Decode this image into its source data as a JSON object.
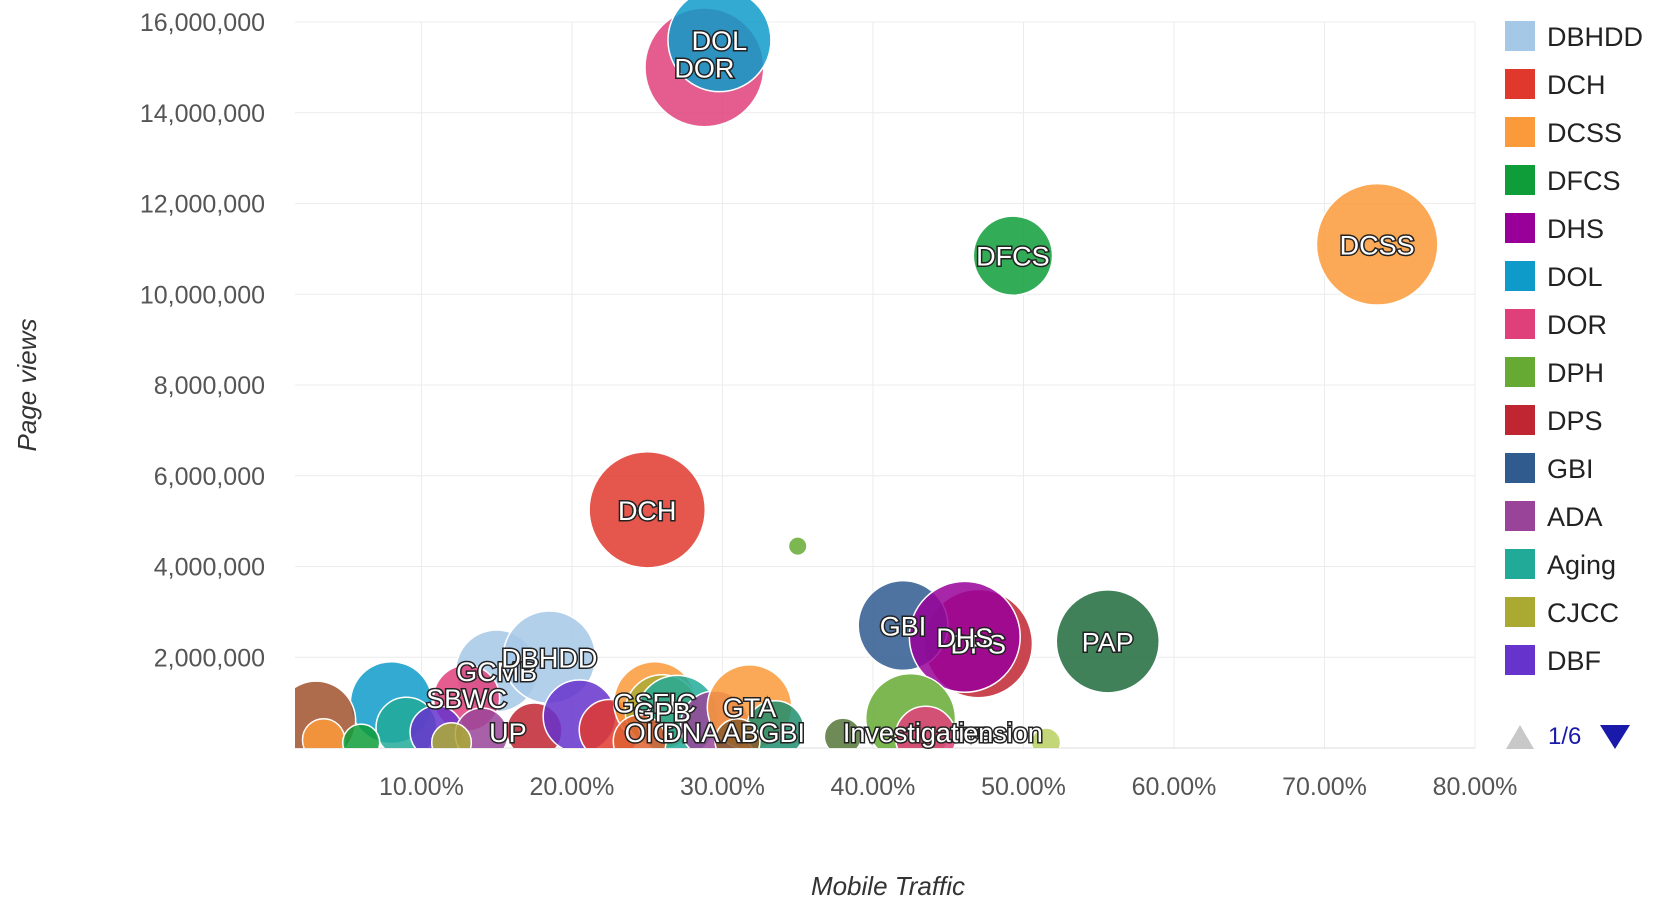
{
  "chart_data": {
    "type": "bubble",
    "xlabel": "Mobile Traffic",
    "ylabel": "Page views",
    "xlim": [
      0.016,
      0.8
    ],
    "ylim": [
      0,
      16000000
    ],
    "x_ticks": [
      "10.00%",
      "20.00%",
      "30.00%",
      "40.00%",
      "50.00%",
      "60.00%",
      "70.00%",
      "80.00%"
    ],
    "x_tick_values": [
      0.1,
      0.2,
      0.3,
      0.4,
      0.5,
      0.6,
      0.7,
      0.8
    ],
    "y_ticks": [
      "16,000,000",
      "14,000,000",
      "12,000,000",
      "10,000,000",
      "8,000,000",
      "6,000,000",
      "4,000,000",
      "2,000,000"
    ],
    "y_tick_values": [
      16000000,
      14000000,
      12000000,
      10000000,
      8000000,
      6000000,
      4000000,
      2000000
    ],
    "grid": true,
    "legend_position": "right",
    "legend": [
      {
        "name": "DBHDD",
        "color": "#a6c8e7"
      },
      {
        "name": "DCH",
        "color": "#e0382d"
      },
      {
        "name": "DCSS",
        "color": "#fb9a3a"
      },
      {
        "name": "DFCS",
        "color": "#0f9d3a"
      },
      {
        "name": "DHS",
        "color": "#990099"
      },
      {
        "name": "DOL",
        "color": "#0e9bc9"
      },
      {
        "name": "DOR",
        "color": "#e0407a"
      },
      {
        "name": "DPH",
        "color": "#66aa33"
      },
      {
        "name": "DPS",
        "color": "#c02631"
      },
      {
        "name": "GBI",
        "color": "#2f5b8f"
      },
      {
        "name": "ADA",
        "color": "#994499"
      },
      {
        "name": "Aging",
        "color": "#22aa99"
      },
      {
        "name": "CJCC",
        "color": "#aaaa33"
      },
      {
        "name": "DBF",
        "color": "#6633cc"
      }
    ],
    "pager": "1/6",
    "bubbles": [
      {
        "label": "DOR",
        "x": 0.288,
        "y": 15000000,
        "size": 90,
        "color": "#e0407a"
      },
      {
        "label": "DOL",
        "x": 0.298,
        "y": 15600000,
        "size": 78,
        "color": "#0e9bc9"
      },
      {
        "label": "DFCS",
        "x": 0.493,
        "y": 10850000,
        "size": 60,
        "color": "#0f9d3a"
      },
      {
        "label": "DCSS",
        "x": 0.735,
        "y": 11100000,
        "size": 92,
        "color": "#fb9a3a"
      },
      {
        "label": "DCH",
        "x": 0.25,
        "y": 5250000,
        "size": 88,
        "color": "#e0382d"
      },
      {
        "label": "",
        "x": 0.35,
        "y": 4450000,
        "size": 14,
        "color": "#66aa33"
      },
      {
        "label": "DPS",
        "x": 0.47,
        "y": 2300000,
        "size": 82,
        "color": "#c02631"
      },
      {
        "label": "GBI",
        "x": 0.42,
        "y": 2700000,
        "size": 68,
        "color": "#2f5b8f"
      },
      {
        "label": "DHS",
        "x": 0.461,
        "y": 2450000,
        "size": 84,
        "color": "#990099"
      },
      {
        "label": "PAP",
        "x": 0.556,
        "y": 2350000,
        "size": 78,
        "color": "#1e6b3c"
      },
      {
        "label": "GCMB",
        "x": 0.15,
        "y": 1700000,
        "size": 62,
        "color": "#a6c8e7"
      },
      {
        "label": "DBHDD",
        "x": 0.185,
        "y": 2000000,
        "size": 70,
        "color": "#a6c8e7"
      },
      {
        "label": "SBWC",
        "x": 0.13,
        "y": 1100000,
        "size": 50,
        "color": "#e0407a"
      },
      {
        "label": "",
        "x": 0.08,
        "y": 1000000,
        "size": 62,
        "color": "#0e9bc9"
      },
      {
        "label": "",
        "x": 0.03,
        "y": 600000,
        "size": 60,
        "color": "#a0522d"
      },
      {
        "label": "",
        "x": 0.09,
        "y": 450000,
        "size": 46,
        "color": "#22aa99"
      },
      {
        "label": "",
        "x": 0.11,
        "y": 350000,
        "size": 40,
        "color": "#6633cc"
      },
      {
        "label": "",
        "x": 0.14,
        "y": 300000,
        "size": 40,
        "color": "#994499"
      },
      {
        "label": "",
        "x": 0.175,
        "y": 380000,
        "size": 42,
        "color": "#c02631"
      },
      {
        "label": "",
        "x": 0.205,
        "y": 700000,
        "size": 55,
        "color": "#6633cc"
      },
      {
        "label": "",
        "x": 0.225,
        "y": 400000,
        "size": 46,
        "color": "#e0382d"
      },
      {
        "label": "GSFIC",
        "x": 0.255,
        "y": 1000000,
        "size": 62,
        "color": "#fb9a3a"
      },
      {
        "label": "GPB",
        "x": 0.26,
        "y": 800000,
        "size": 56,
        "color": "#aaaa33"
      },
      {
        "label": "",
        "x": 0.27,
        "y": 700000,
        "size": 62,
        "color": "#22aa99"
      },
      {
        "label": "",
        "x": 0.295,
        "y": 500000,
        "size": 52,
        "color": "#994499"
      },
      {
        "label": "GTA",
        "x": 0.318,
        "y": 900000,
        "size": 64,
        "color": "#fb9a3a"
      },
      {
        "label": "",
        "x": 0.335,
        "y": 400000,
        "size": 44,
        "color": "#1e8e6e"
      },
      {
        "label": "",
        "x": 0.38,
        "y": 250000,
        "size": 28,
        "color": "#55773a"
      },
      {
        "label": "",
        "x": 0.425,
        "y": 650000,
        "size": 68,
        "color": "#66aa33"
      },
      {
        "label": "",
        "x": 0.435,
        "y": 250000,
        "size": 46,
        "color": "#e0407a"
      },
      {
        "label": "",
        "x": 0.515,
        "y": 120000,
        "size": 22,
        "color": "#b8d060"
      },
      {
        "label": "",
        "x": 0.245,
        "y": 150000,
        "size": 40,
        "color": "#e06030"
      },
      {
        "label": "",
        "x": 0.31,
        "y": 150000,
        "size": 34,
        "color": "#8a5b2b"
      },
      {
        "label": "",
        "x": 0.035,
        "y": 180000,
        "size": 32,
        "color": "#fb9a3a"
      },
      {
        "label": "",
        "x": 0.06,
        "y": 120000,
        "size": 28,
        "color": "#0f9d3a"
      },
      {
        "label": "",
        "x": 0.12,
        "y": 120000,
        "size": 30,
        "color": "#aaaa33"
      }
    ],
    "bottom_strip_labels": [
      {
        "text": "Investigative",
        "x": 0.38
      },
      {
        "text": "ension",
        "x": 0.46
      },
      {
        "text": "ABGBI",
        "x": 0.3
      },
      {
        "text": "OIG",
        "x": 0.235
      },
      {
        "text": "DNA",
        "x": 0.26
      },
      {
        "text": "UP",
        "x": 0.145
      }
    ]
  }
}
